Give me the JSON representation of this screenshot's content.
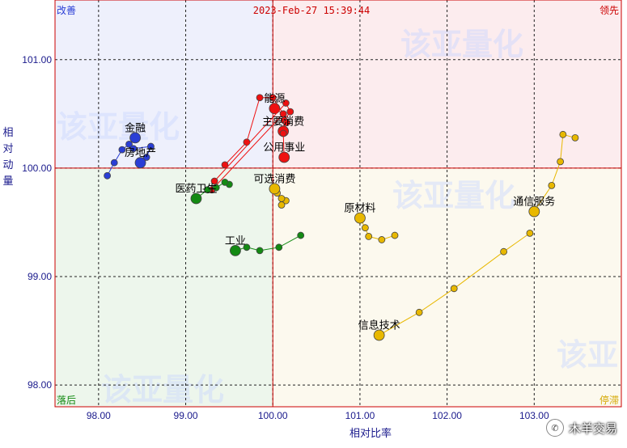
{
  "chart_data": {
    "type": "scatter",
    "subtype": "relative-rotation-graph",
    "timestamp": "2023-Feb-27 15:39:44",
    "xlabel": "相对比率",
    "ylabel": "相对动量",
    "xlim": [
      97.5,
      104.0
    ],
    "ylim": [
      97.8,
      101.55
    ],
    "x_ticks": [
      "98.00",
      "99.00",
      "100.00",
      "101.00",
      "102.00",
      "103.00"
    ],
    "y_ticks": [
      "98.00",
      "99.00",
      "100.00",
      "101.00"
    ],
    "grid": true,
    "quadrants": {
      "top_left": "改善",
      "top_right": "领先",
      "bottom_left": "落后",
      "bottom_right": "停滞"
    },
    "watermark": "该亚量化",
    "series": [
      {
        "name": "能源",
        "color": "#ee1111",
        "points": [
          [
            99.45,
            100.03
          ],
          [
            99.7,
            100.24
          ],
          [
            99.85,
            100.65
          ],
          [
            100.0,
            100.65
          ],
          [
            100.12,
            100.5
          ],
          [
            100.02,
            100.55
          ]
        ]
      },
      {
        "name": "主要消费",
        "color": "#ee1111",
        "points": [
          [
            99.33,
            99.88
          ],
          [
            100.15,
            100.6
          ],
          [
            100.2,
            100.52
          ],
          [
            100.13,
            100.44
          ],
          [
            100.12,
            100.34
          ]
        ]
      },
      {
        "name": "公用事业",
        "color": "#ee1111",
        "points": [
          [
            99.3,
            99.8
          ],
          [
            100.12,
            100.5
          ],
          [
            100.16,
            100.42
          ],
          [
            100.12,
            100.32
          ],
          [
            100.13,
            100.1
          ]
        ]
      },
      {
        "name": "金融",
        "color": "#2a3ed6",
        "points": [
          [
            98.1,
            99.93
          ],
          [
            98.18,
            100.05
          ],
          [
            98.27,
            100.17
          ],
          [
            98.35,
            100.22
          ],
          [
            98.42,
            100.28
          ]
        ]
      },
      {
        "name": "房地产",
        "color": "#2a3ed6",
        "points": [
          [
            98.4,
            100.18
          ],
          [
            98.6,
            100.2
          ],
          [
            98.55,
            100.1
          ],
          [
            98.5,
            100.05
          ],
          [
            98.48,
            100.05
          ]
        ]
      },
      {
        "name": "医药卫生",
        "color": "#138a13",
        "points": [
          [
            99.5,
            99.85
          ],
          [
            99.45,
            99.87
          ],
          [
            99.35,
            99.82
          ],
          [
            99.25,
            99.8
          ],
          [
            99.12,
            99.72
          ]
        ]
      },
      {
        "name": "工业",
        "color": "#138a13",
        "points": [
          [
            100.32,
            99.38
          ],
          [
            100.07,
            99.27
          ],
          [
            99.85,
            99.24
          ],
          [
            99.7,
            99.27
          ],
          [
            99.57,
            99.24
          ]
        ]
      },
      {
        "name": "可选消费",
        "color": "#e8b800",
        "points": [
          [
            100.15,
            99.7
          ],
          [
            100.1,
            99.66
          ],
          [
            100.1,
            99.72
          ],
          [
            100.05,
            99.77
          ],
          [
            100.02,
            99.81
          ]
        ]
      },
      {
        "name": "原材料",
        "color": "#e8b800",
        "points": [
          [
            101.4,
            99.38
          ],
          [
            101.25,
            99.34
          ],
          [
            101.1,
            99.37
          ],
          [
            101.06,
            99.45
          ],
          [
            101.0,
            99.54
          ]
        ]
      },
      {
        "name": "通信服务",
        "color": "#e8b800",
        "points": [
          [
            103.47,
            100.28
          ],
          [
            103.33,
            100.31
          ],
          [
            103.3,
            100.06
          ],
          [
            103.2,
            99.84
          ],
          [
            103.0,
            99.6
          ]
        ]
      },
      {
        "name": "信息技术",
        "color": "#e8b800",
        "points": [
          [
            102.95,
            99.4
          ],
          [
            102.65,
            99.23
          ],
          [
            102.08,
            98.89
          ],
          [
            101.68,
            98.67
          ],
          [
            101.22,
            98.46
          ]
        ]
      }
    ]
  },
  "brand": {
    "text": "木羊交易",
    "icon": "wechat-icon"
  }
}
